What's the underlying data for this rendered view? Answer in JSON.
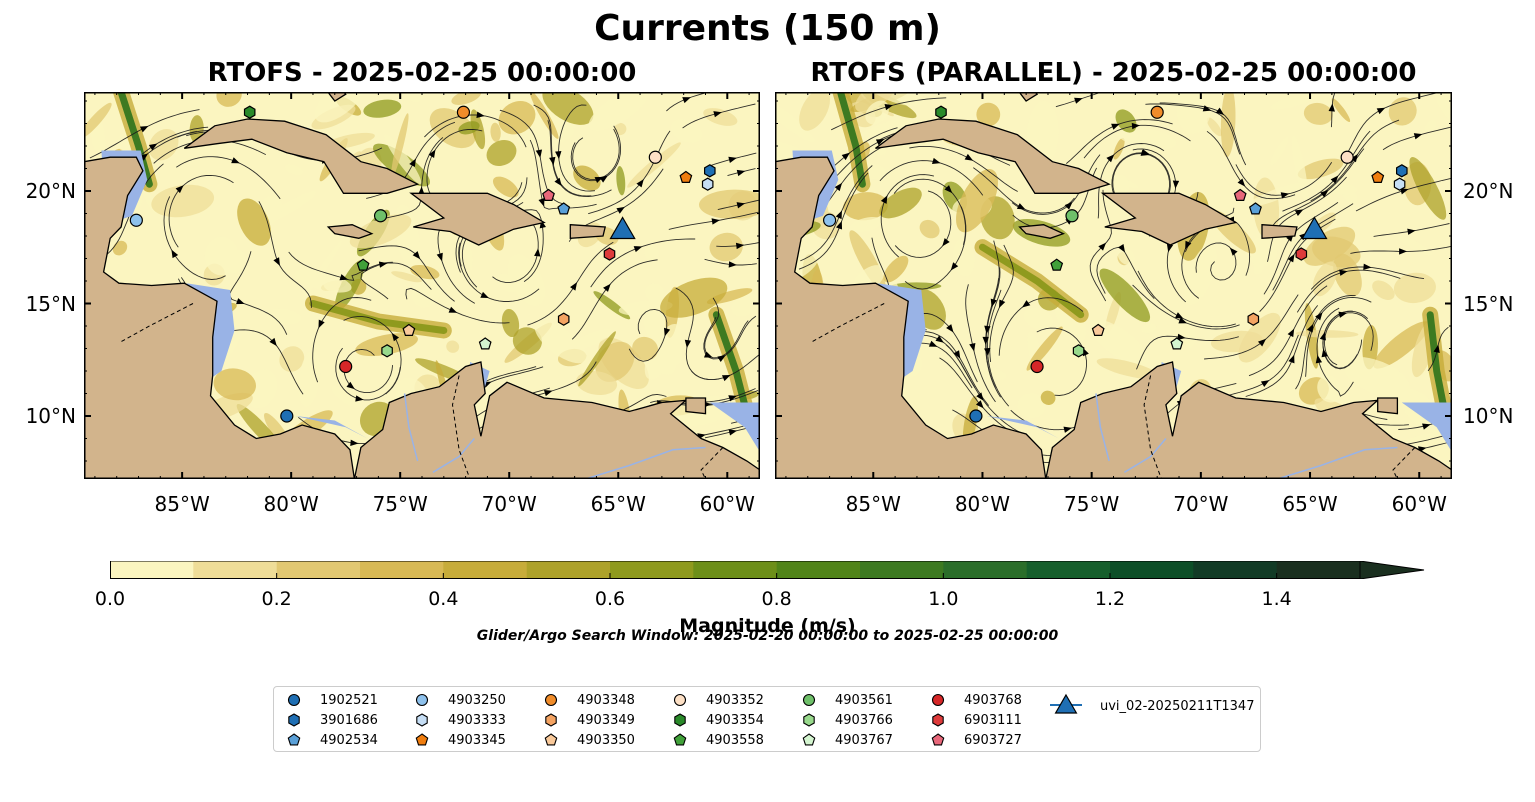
{
  "figure": {
    "title": "Currents (150 m)",
    "panels": [
      {
        "title": "RTOFS - 2025-02-25 00:00:00"
      },
      {
        "title": "RTOFS (PARALLEL) - 2025-02-25 00:00:00"
      }
    ],
    "lon_ticks": [
      "85°W",
      "80°W",
      "75°W",
      "70°W",
      "65°W",
      "60°W"
    ],
    "lat_ticks": [
      "20°N",
      "15°N",
      "10°N"
    ],
    "extent": {
      "lon": [
        -89.5,
        -58.5
      ],
      "lat": [
        7.2,
        24.4
      ]
    },
    "colorbar": {
      "label": "Magnitude (m/s)",
      "ticks": [
        "0.0",
        "0.2",
        "0.4",
        "0.6",
        "0.8",
        "1.0",
        "1.2",
        "1.4"
      ],
      "min": 0.0,
      "max": 1.5,
      "step": 0.1,
      "extend": "max",
      "colors": [
        "#fbf5c0",
        "#efdd98",
        "#e2c872",
        "#d8b955",
        "#c7ac3a",
        "#aea22a",
        "#8f9a1e",
        "#6d8f19",
        "#518419",
        "#3d7a21",
        "#2b6e2a",
        "#165f2c",
        "#0d4f28",
        "#123b26",
        "#1a2f1f"
      ]
    },
    "search_window": "Glider/Argo Search Window: 2025-02-20 00:00:00 to 2025-02-25 00:00:00",
    "colors": {
      "land": "#d2b48c",
      "ocean": "#99b3e6",
      "coast": "#000000"
    }
  },
  "legend": [
    {
      "label": "1902521",
      "marker": "circle",
      "color": "#1f6fb4"
    },
    {
      "label": "3901686",
      "marker": "hexagon",
      "color": "#1f6fb4"
    },
    {
      "label": "4902534",
      "marker": "pentagon",
      "color": "#5aa0d8"
    },
    {
      "label": "4903250",
      "marker": "circle",
      "color": "#8ec1ec"
    },
    {
      "label": "4903333",
      "marker": "hexagon",
      "color": "#c6def5"
    },
    {
      "label": "4903345",
      "marker": "pentagon",
      "color": "#f07d0e"
    },
    {
      "label": "4903348",
      "marker": "circle",
      "color": "#f08c2a"
    },
    {
      "label": "4903349",
      "marker": "hexagon",
      "color": "#f4a362"
    },
    {
      "label": "4903350",
      "marker": "pentagon",
      "color": "#f9c99a"
    },
    {
      "label": "4903352",
      "marker": "circle",
      "color": "#fde0c5"
    },
    {
      "label": "4903354",
      "marker": "hexagon",
      "color": "#2a8a2a"
    },
    {
      "label": "4903558",
      "marker": "pentagon",
      "color": "#41a13a"
    },
    {
      "label": "4903561",
      "marker": "circle",
      "color": "#6fc06a"
    },
    {
      "label": "4903766",
      "marker": "hexagon",
      "color": "#98d98c"
    },
    {
      "label": "4903767",
      "marker": "pentagon",
      "color": "#d4f5d0"
    },
    {
      "label": "4903768",
      "marker": "circle",
      "color": "#d62728"
    },
    {
      "label": "6903111",
      "marker": "hexagon",
      "color": "#de3b3b"
    },
    {
      "label": "6903727",
      "marker": "pentagon",
      "color": "#e8677a"
    },
    {
      "label": "uvi_02-20250211T1347",
      "marker": "triangle",
      "color": "#1f6fb4"
    }
  ],
  "markers": {
    "left": [
      {
        "id": "1902521",
        "lon": -80.2,
        "lat": 10.0
      },
      {
        "id": "4903250",
        "lon": -87.1,
        "lat": 18.7
      },
      {
        "id": "4903352",
        "lon": -63.3,
        "lat": 21.5
      },
      {
        "id": "3901686",
        "lon": -60.8,
        "lat": 20.9
      },
      {
        "id": "4903333",
        "lon": -60.9,
        "lat": 20.3
      },
      {
        "id": "4903345",
        "lon": -61.9,
        "lat": 20.6
      },
      {
        "id": "4903348",
        "lon": -72.1,
        "lat": 23.5
      },
      {
        "id": "4903354",
        "lon": -81.9,
        "lat": 23.5
      },
      {
        "id": "6903727",
        "lon": -68.2,
        "lat": 19.8
      },
      {
        "id": "4902534",
        "lon": -67.5,
        "lat": 19.2
      },
      {
        "id": "4903561",
        "lon": -75.9,
        "lat": 18.9
      },
      {
        "id": "4903558",
        "lon": -76.7,
        "lat": 16.7
      },
      {
        "id": "6903111",
        "lon": -65.4,
        "lat": 17.2
      },
      {
        "id": "uvi_02-20250211T1347",
        "lon": -64.8,
        "lat": 18.2
      },
      {
        "id": "4903349",
        "lon": -67.5,
        "lat": 14.3
      },
      {
        "id": "4903350",
        "lon": -74.6,
        "lat": 13.8
      },
      {
        "id": "4903766",
        "lon": -75.6,
        "lat": 12.9
      },
      {
        "id": "4903767",
        "lon": -71.1,
        "lat": 13.2
      },
      {
        "id": "4903768",
        "lon": -77.5,
        "lat": 12.2
      }
    ],
    "right": [
      {
        "id": "1902521",
        "lon": -80.3,
        "lat": 10.0
      },
      {
        "id": "4903250",
        "lon": -87.0,
        "lat": 18.7
      },
      {
        "id": "4903352",
        "lon": -63.3,
        "lat": 21.5
      },
      {
        "id": "3901686",
        "lon": -60.8,
        "lat": 20.9
      },
      {
        "id": "4903333",
        "lon": -60.9,
        "lat": 20.3
      },
      {
        "id": "4903345",
        "lon": -61.9,
        "lat": 20.6
      },
      {
        "id": "4903348",
        "lon": -72.0,
        "lat": 23.5
      },
      {
        "id": "4903354",
        "lon": -81.9,
        "lat": 23.5
      },
      {
        "id": "6903727",
        "lon": -68.2,
        "lat": 19.8
      },
      {
        "id": "4902534",
        "lon": -67.5,
        "lat": 19.2
      },
      {
        "id": "4903561",
        "lon": -75.9,
        "lat": 18.9
      },
      {
        "id": "4903558",
        "lon": -76.6,
        "lat": 16.7
      },
      {
        "id": "6903111",
        "lon": -65.4,
        "lat": 17.2
      },
      {
        "id": "uvi_02-20250211T1347",
        "lon": -64.8,
        "lat": 18.2
      },
      {
        "id": "4903349",
        "lon": -67.6,
        "lat": 14.3
      },
      {
        "id": "4903350",
        "lon": -74.7,
        "lat": 13.8
      },
      {
        "id": "4903766",
        "lon": -75.6,
        "lat": 12.9
      },
      {
        "id": "4903767",
        "lon": -71.1,
        "lat": 13.2
      },
      {
        "id": "4903768",
        "lon": -77.5,
        "lat": 12.2
      }
    ]
  }
}
